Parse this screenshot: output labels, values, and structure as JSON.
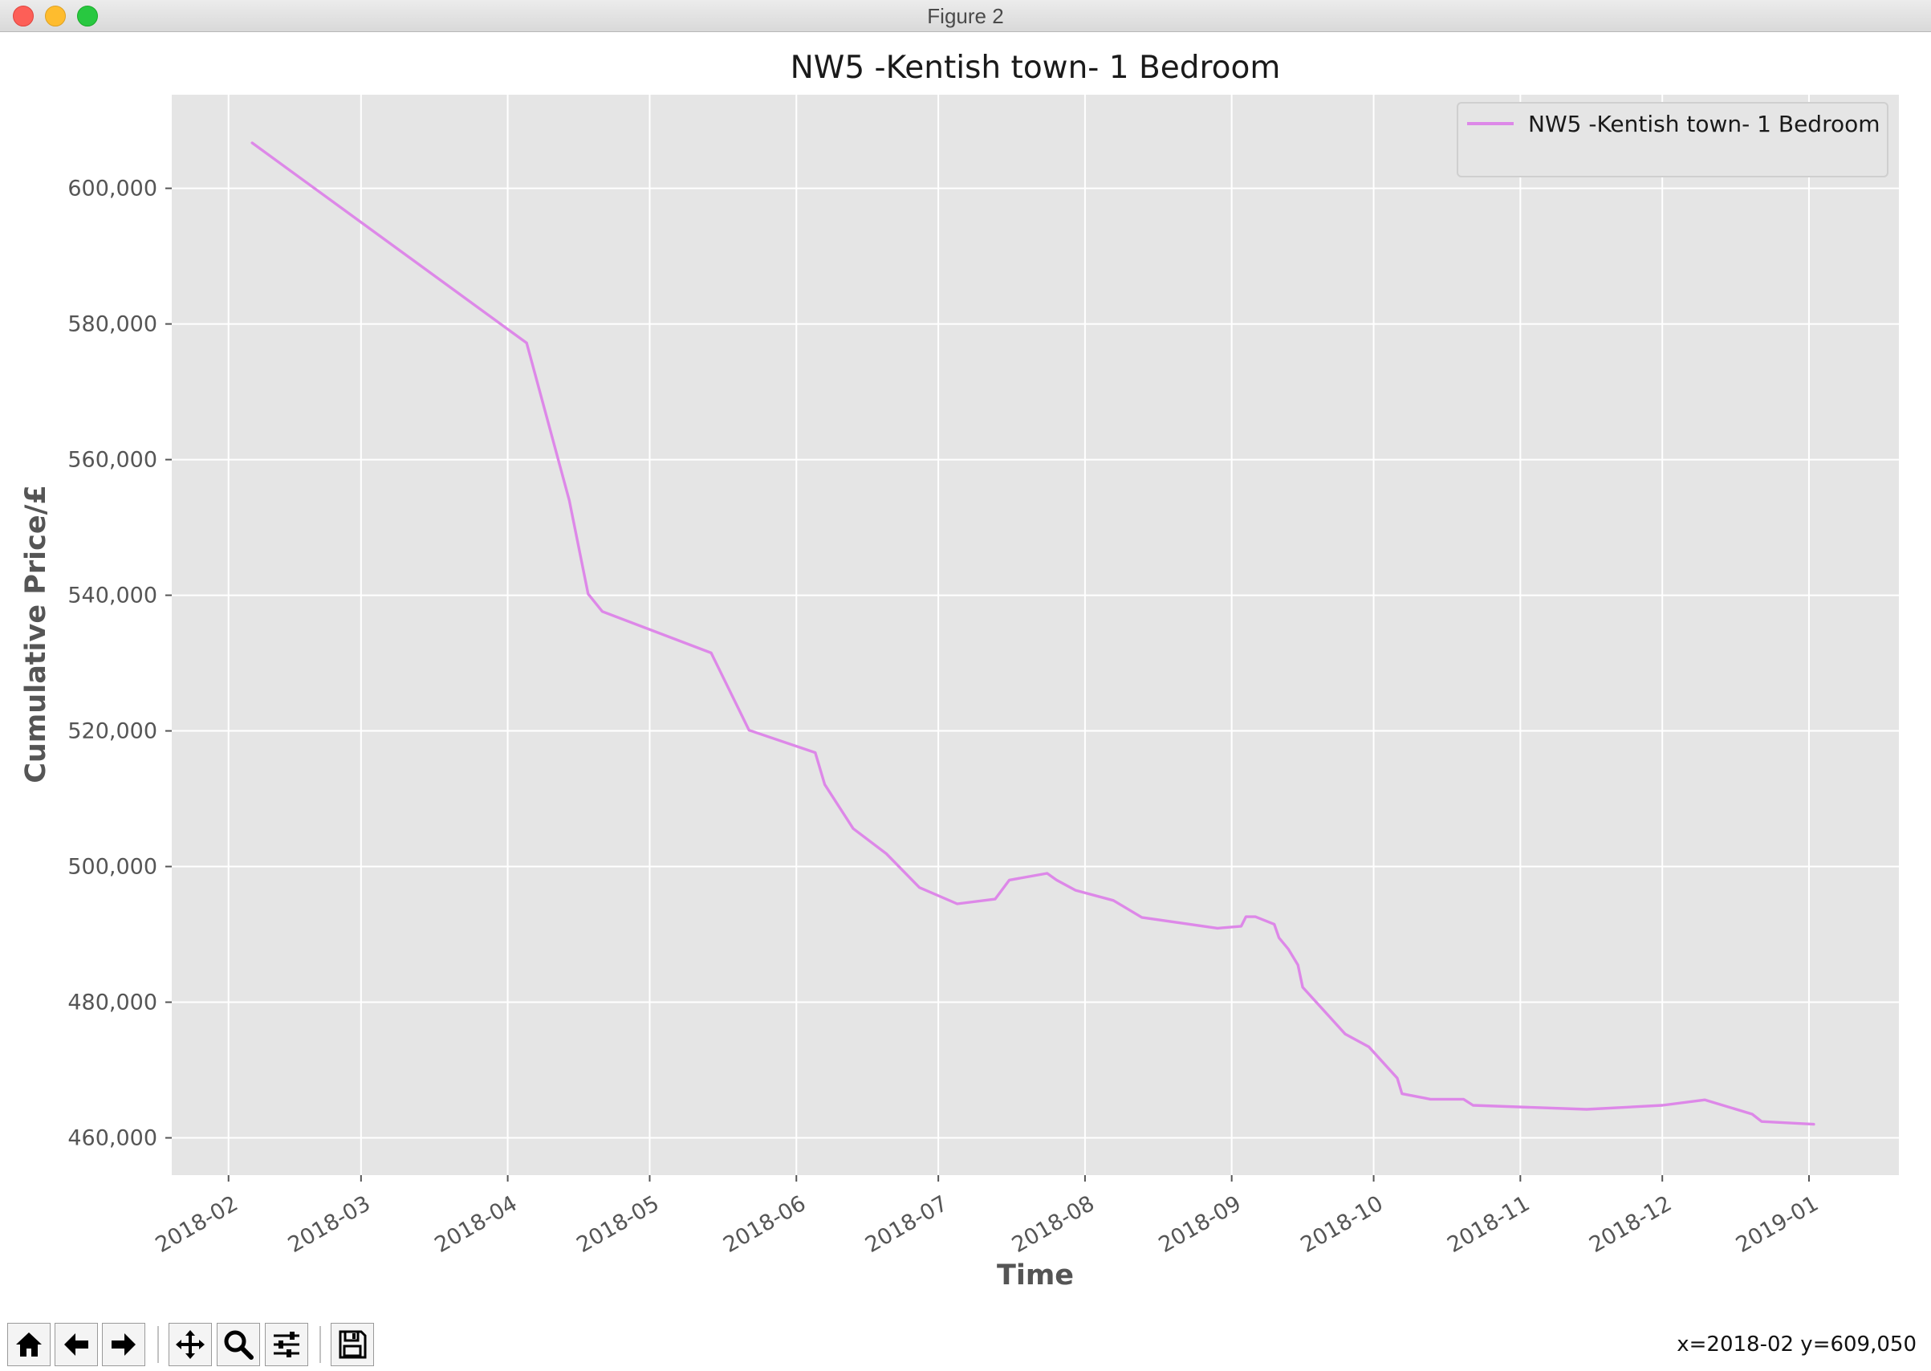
{
  "window": {
    "title": "Figure 2"
  },
  "status": {
    "coords": "x=2018-02 y=609,050"
  },
  "toolbar": {
    "buttons": [
      {
        "name": "home-button",
        "icon": "home-icon"
      },
      {
        "name": "back-button",
        "icon": "arrow-left-icon"
      },
      {
        "name": "forward-button",
        "icon": "arrow-right-icon"
      },
      {
        "name": "pan-button",
        "icon": "move-icon"
      },
      {
        "name": "zoom-button",
        "icon": "magnifier-icon"
      },
      {
        "name": "configure-subplots-button",
        "icon": "sliders-icon"
      },
      {
        "name": "save-button",
        "icon": "floppy-disk-icon"
      }
    ]
  },
  "chart_data": {
    "type": "line",
    "title": "NW5 -Kentish town- 1 Bedroom",
    "xlabel": "Time",
    "ylabel": "Cumulative Price/£",
    "x_ticks": [
      "2018-02",
      "2018-03",
      "2018-04",
      "2018-05",
      "2018-06",
      "2018-07",
      "2018-08",
      "2018-09",
      "2018-10",
      "2018-11",
      "2018-12",
      "2019-01"
    ],
    "y_ticks": [
      460000,
      480000,
      500000,
      520000,
      540000,
      560000,
      580000,
      600000
    ],
    "y_tick_labels": [
      "460,000",
      "480,000",
      "500,000",
      "520,000",
      "540,000",
      "560,000",
      "580,000",
      "600,000"
    ],
    "xlim": [
      "2018-01-20",
      "2019-01-20"
    ],
    "ylim": [
      454500,
      613800
    ],
    "grid": true,
    "legend": "upper right",
    "background": "#e5e5e5",
    "series": [
      {
        "name": "NW5 -Kentish town- 1 Bedroom",
        "color": "#dd88e8",
        "x": [
          "2018-02-06",
          "2018-04-05",
          "2018-04-14",
          "2018-04-18",
          "2018-04-21",
          "2018-05-14",
          "2018-05-22",
          "2018-06-05",
          "2018-06-07",
          "2018-06-13",
          "2018-06-20",
          "2018-06-27",
          "2018-07-05",
          "2018-07-13",
          "2018-07-16",
          "2018-07-24",
          "2018-07-26",
          "2018-07-30",
          "2018-08-07",
          "2018-08-13",
          "2018-08-29",
          "2018-09-03",
          "2018-09-04",
          "2018-09-06",
          "2018-09-10",
          "2018-09-11",
          "2018-09-13",
          "2018-09-15",
          "2018-09-16",
          "2018-09-25",
          "2018-09-30",
          "2018-10-06",
          "2018-10-07",
          "2018-10-13",
          "2018-10-20",
          "2018-10-22",
          "2018-11-15",
          "2018-12-01",
          "2018-12-10",
          "2018-12-20",
          "2018-12-22",
          "2019-01-02"
        ],
        "y": [
          606700,
          577200,
          554000,
          540200,
          537600,
          531500,
          520100,
          516800,
          512100,
          505600,
          501900,
          496900,
          494500,
          495200,
          498000,
          499000,
          498000,
          496500,
          495000,
          492500,
          490900,
          491200,
          492600,
          492600,
          491500,
          489500,
          487800,
          485500,
          482200,
          475300,
          473400,
          468800,
          466500,
          465700,
          465700,
          464800,
          464200,
          464800,
          465600,
          463500,
          462400,
          462000
        ]
      }
    ]
  }
}
